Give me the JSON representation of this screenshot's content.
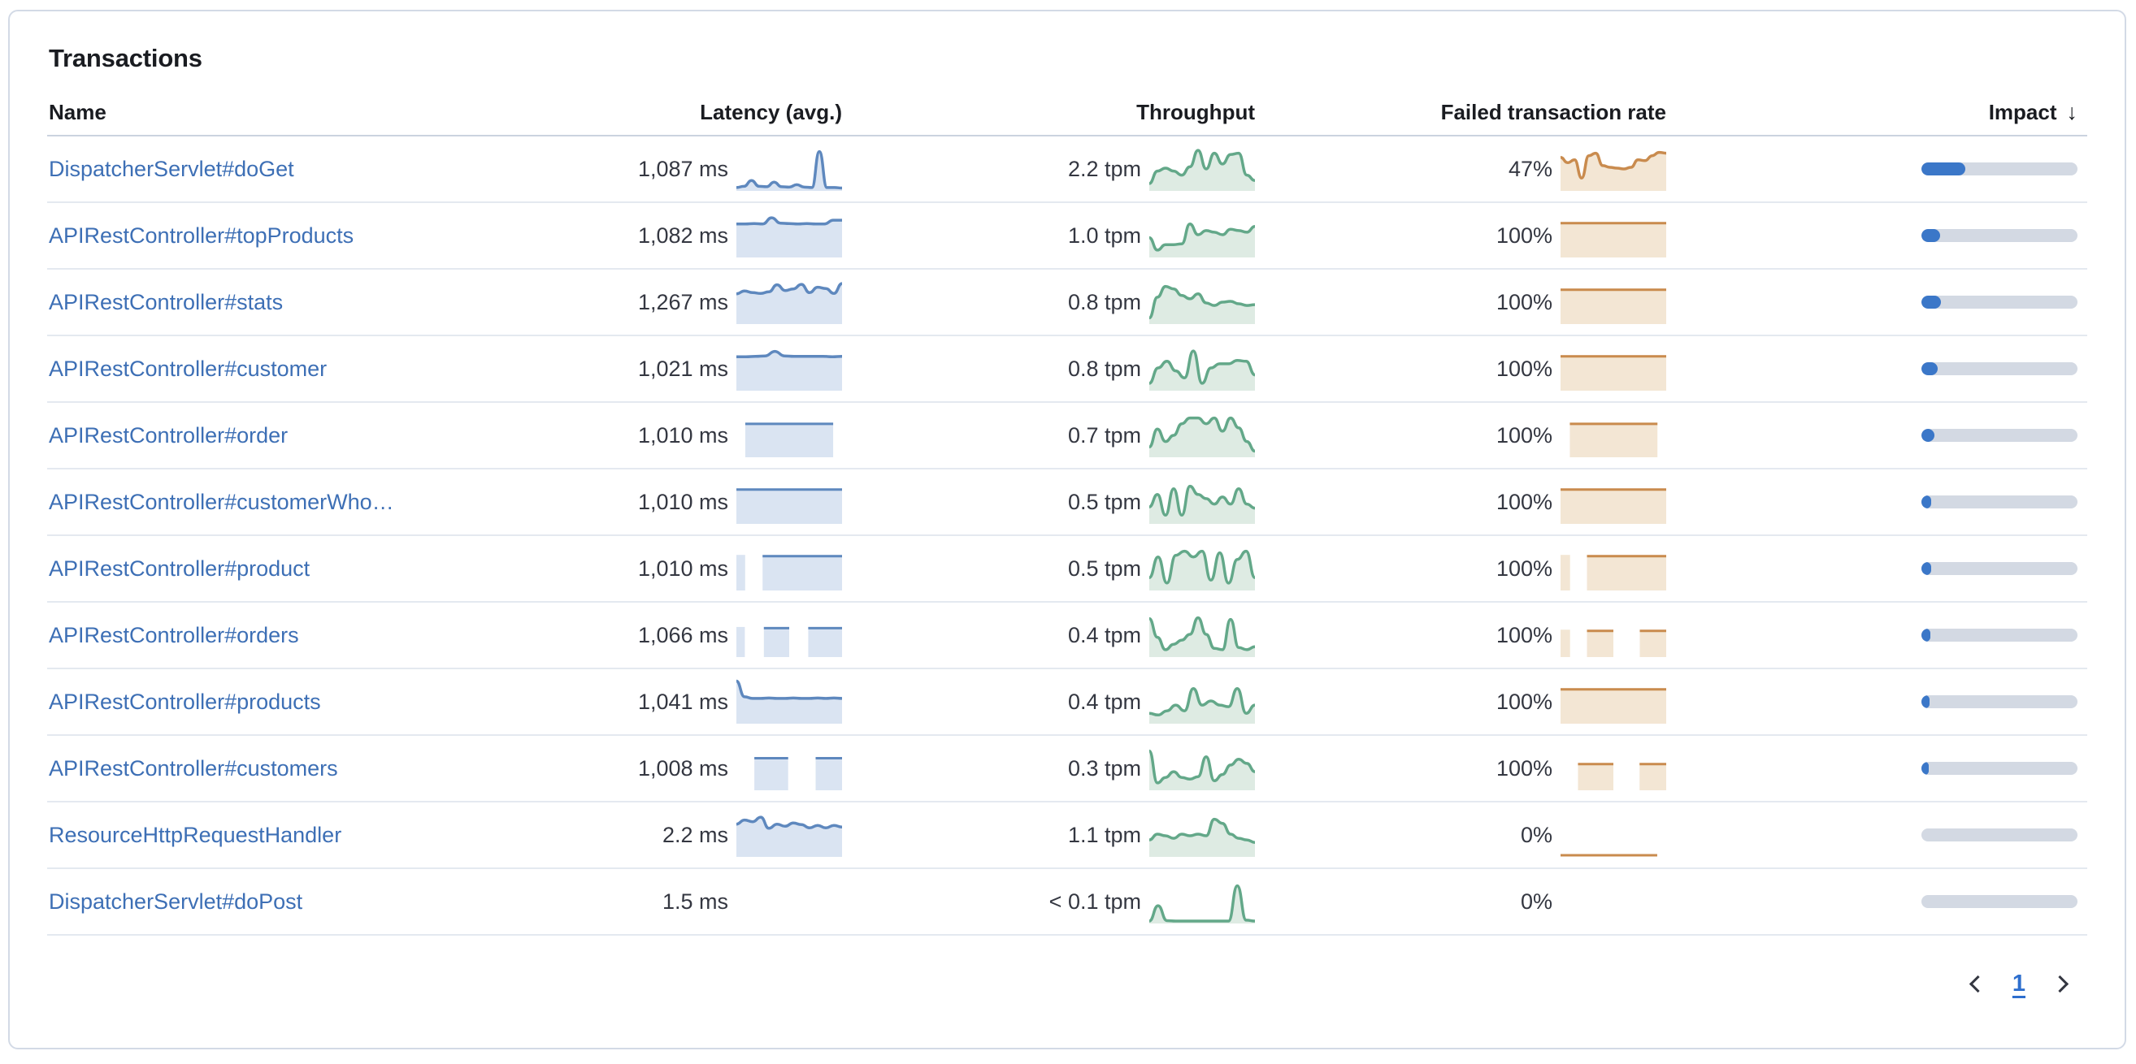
{
  "card": {
    "title": "Transactions"
  },
  "table": {
    "columns": [
      {
        "label": "Name",
        "align": "left"
      },
      {
        "label": "Latency (avg.)",
        "align": "right"
      },
      {
        "label": "Throughput",
        "align": "right"
      },
      {
        "label": "Failed transaction rate",
        "align": "right"
      },
      {
        "label": "Impact",
        "align": "right",
        "sorted": "desc"
      }
    ],
    "sort_icon": "↓",
    "rows": [
      {
        "name": "DispatcherServlet#doGet",
        "latency": "1,087 ms",
        "throughput": "2.2 tpm",
        "failed_rate": "47%",
        "impact_pct": 28,
        "latency_spark": {
          "type": "line",
          "points": [
            0.05,
            0.08,
            0.22,
            0.08,
            0.07,
            0.18,
            0.07,
            0.06,
            0.12,
            0.06,
            0.05,
            0.92,
            0.05,
            0.05,
            0.04
          ]
        },
        "throughput_spark": {
          "type": "line",
          "points": [
            0.15,
            0.45,
            0.52,
            0.45,
            0.35,
            0.55,
            0.95,
            0.5,
            0.88,
            0.62,
            0.85,
            0.88,
            0.35,
            0.22
          ]
        },
        "failed_spark": {
          "type": "line",
          "points": [
            0.78,
            0.65,
            0.72,
            0.28,
            0.82,
            0.88,
            0.58,
            0.54,
            0.52,
            0.5,
            0.54,
            0.72,
            0.7,
            0.82,
            0.9,
            0.88
          ]
        }
      },
      {
        "name": "APIRestController#topProducts",
        "latency": "1,082 ms",
        "throughput": "1.0 tpm",
        "failed_rate": "100%",
        "impact_pct": 12,
        "latency_spark": {
          "type": "line",
          "points": [
            0.78,
            0.78,
            0.79,
            0.78,
            0.93,
            0.8,
            0.79,
            0.78,
            0.79,
            0.78,
            0.78,
            0.87,
            0.87
          ]
        },
        "throughput_spark": {
          "type": "line",
          "points": [
            0.45,
            0.15,
            0.28,
            0.28,
            0.3,
            0.78,
            0.52,
            0.62,
            0.58,
            0.52,
            0.65,
            0.62,
            0.58,
            0.72
          ]
        },
        "failed_spark": {
          "type": "blocks",
          "level": 0.8,
          "segments": [
            [
              0,
              1
            ]
          ]
        }
      },
      {
        "name": "APIRestController#stats",
        "latency": "1,267 ms",
        "throughput": "0.8 tpm",
        "failed_rate": "100%",
        "impact_pct": 12.5,
        "latency_spark": {
          "type": "line",
          "points": [
            0.7,
            0.77,
            0.73,
            0.71,
            0.75,
            0.92,
            0.78,
            0.82,
            0.93,
            0.73,
            0.86,
            0.83,
            0.71,
            0.95
          ]
        },
        "throughput_spark": {
          "type": "line",
          "points": [
            0.12,
            0.62,
            0.88,
            0.82,
            0.66,
            0.58,
            0.7,
            0.48,
            0.42,
            0.5,
            0.52,
            0.46,
            0.42,
            0.44
          ]
        },
        "failed_spark": {
          "type": "blocks",
          "level": 0.8,
          "segments": [
            [
              0,
              1
            ]
          ]
        }
      },
      {
        "name": "APIRestController#customer",
        "latency": "1,021 ms",
        "throughput": "0.8 tpm",
        "failed_rate": "100%",
        "impact_pct": 10.5,
        "latency_spark": {
          "type": "line",
          "points": [
            0.79,
            0.79,
            0.8,
            0.81,
            0.92,
            0.81,
            0.8,
            0.8,
            0.8,
            0.8,
            0.79,
            0.8
          ]
        },
        "throughput_spark": {
          "type": "line",
          "points": [
            0.15,
            0.52,
            0.68,
            0.45,
            0.28,
            0.93,
            0.15,
            0.52,
            0.62,
            0.62,
            0.7,
            0.68,
            0.35
          ]
        },
        "failed_spark": {
          "type": "blocks",
          "level": 0.8,
          "segments": [
            [
              0,
              1
            ]
          ]
        }
      },
      {
        "name": "APIRestController#order",
        "latency": "1,010 ms",
        "throughput": "0.7 tpm",
        "failed_rate": "100%",
        "impact_pct": 8.5,
        "latency_spark": {
          "type": "blocks",
          "level": 0.78,
          "segments": [
            [
              0.084,
              0.916
            ]
          ]
        },
        "throughput_spark": {
          "type": "line",
          "points": [
            0.22,
            0.65,
            0.35,
            0.5,
            0.78,
            0.92,
            0.92,
            0.78,
            0.92,
            0.6,
            0.92,
            0.68,
            0.35,
            0.12
          ]
        },
        "failed_spark": {
          "type": "blocks",
          "level": 0.78,
          "segments": [
            [
              0.088,
              0.917
            ]
          ]
        }
      },
      {
        "name": "APIRestController#customerWho…",
        "latency": "1,010 ms",
        "throughput": "0.5 tpm",
        "failed_rate": "100%",
        "impact_pct": 6.5,
        "latency_spark": {
          "type": "blocks",
          "level": 0.8,
          "segments": [
            [
              0,
              1
            ]
          ]
        },
        "throughput_spark": {
          "type": "line",
          "points": [
            0.38,
            0.68,
            0.18,
            0.82,
            0.18,
            0.88,
            0.68,
            0.58,
            0.45,
            0.62,
            0.45,
            0.82,
            0.45,
            0.35
          ]
        },
        "failed_spark": {
          "type": "blocks",
          "level": 0.8,
          "segments": [
            [
              0,
              1
            ]
          ]
        }
      },
      {
        "name": "APIRestController#product",
        "latency": "1,010 ms",
        "throughput": "0.5 tpm",
        "failed_rate": "100%",
        "impact_pct": 6,
        "latency_spark": {
          "type": "blocks",
          "level": 0.8,
          "segments": [
            [
              0,
              0.083
            ],
            [
              0.248,
              1
            ]
          ]
        },
        "throughput_spark": {
          "type": "line",
          "points": [
            0.28,
            0.78,
            0.15,
            0.82,
            0.92,
            0.78,
            0.92,
            0.22,
            0.88,
            0.15,
            0.72,
            0.92,
            0.28
          ]
        },
        "failed_spark": {
          "type": "blocks",
          "level": 0.8,
          "segments": [
            [
              0,
              0.09
            ],
            [
              0.25,
              1
            ]
          ]
        }
      },
      {
        "name": "APIRestController#orders",
        "latency": "1,066 ms",
        "throughput": "0.4 tpm",
        "failed_rate": "100%",
        "impact_pct": 5.5,
        "latency_spark": {
          "type": "blocks",
          "level": 0.68,
          "segments": [
            [
              0,
              0.08
            ],
            [
              0.26,
              0.5
            ],
            [
              0.68,
              1
            ]
          ]
        },
        "throughput_spark": {
          "type": "line",
          "points": [
            0.9,
            0.45,
            0.15,
            0.28,
            0.38,
            0.52,
            0.92,
            0.52,
            0.18,
            0.15,
            0.88,
            0.2,
            0.15,
            0.22
          ]
        },
        "failed_spark": {
          "type": "blocks",
          "level": 0.62,
          "segments": [
            [
              0,
              0.09
            ],
            [
              0.25,
              0.5
            ],
            [
              0.75,
              1
            ]
          ]
        }
      },
      {
        "name": "APIRestController#products",
        "latency": "1,041 ms",
        "throughput": "0.4 tpm",
        "failed_rate": "100%",
        "impact_pct": 5,
        "latency_spark": {
          "type": "line",
          "points": [
            1.0,
            0.62,
            0.58,
            0.58,
            0.59,
            0.58,
            0.58,
            0.59,
            0.58,
            0.58,
            0.59,
            0.58,
            0.59,
            0.58
          ]
        },
        "throughput_spark": {
          "type": "line",
          "points": [
            0.22,
            0.18,
            0.28,
            0.42,
            0.28,
            0.82,
            0.42,
            0.52,
            0.42,
            0.38,
            0.82,
            0.22,
            0.42
          ]
        },
        "failed_spark": {
          "type": "blocks",
          "level": 0.8,
          "segments": [
            [
              0,
              1
            ]
          ]
        }
      },
      {
        "name": "APIRestController#customers",
        "latency": "1,008 ms",
        "throughput": "0.3 tpm",
        "failed_rate": "100%",
        "impact_pct": 4.5,
        "latency_spark": {
          "type": "blocks",
          "level": 0.75,
          "segments": [
            [
              0.17,
              0.49
            ],
            [
              0.75,
              1
            ]
          ]
        },
        "throughput_spark": {
          "type": "line",
          "points": [
            0.92,
            0.15,
            0.28,
            0.42,
            0.28,
            0.24,
            0.3,
            0.78,
            0.2,
            0.35,
            0.58,
            0.72,
            0.62,
            0.42
          ]
        },
        "failed_spark": {
          "type": "blocks",
          "level": 0.62,
          "segments": [
            [
              0.165,
              0.5
            ],
            [
              0.748,
              1
            ]
          ]
        }
      },
      {
        "name": "ResourceHttpRequestHandler",
        "latency": "2.2 ms",
        "throughput": "1.1 tpm",
        "failed_rate": "0%",
        "impact_pct": 0,
        "latency_spark": {
          "type": "line",
          "points": [
            0.76,
            0.86,
            0.82,
            0.93,
            0.66,
            0.76,
            0.71,
            0.79,
            0.75,
            0.67,
            0.73,
            0.67,
            0.73,
            0.69
          ]
        },
        "throughput_spark": {
          "type": "line",
          "points": [
            0.38,
            0.52,
            0.48,
            0.42,
            0.52,
            0.48,
            0.52,
            0.48,
            0.88,
            0.78,
            0.52,
            0.42,
            0.38,
            0.32
          ]
        },
        "failed_spark": {
          "type": "baseline",
          "from": 0,
          "to": 0.915
        }
      },
      {
        "name": "DispatcherServlet#doPost",
        "latency": "1.5 ms",
        "throughput": "< 0.1 tpm",
        "failed_rate": "0%",
        "impact_pct": 0,
        "latency_spark": {
          "type": "none"
        },
        "throughput_spark": {
          "type": "line",
          "points": [
            0.03,
            0.4,
            0.04,
            0.03,
            0.03,
            0.03,
            0.03,
            0.03,
            0.03,
            0.03,
            0.88,
            0.05,
            0.03
          ]
        },
        "failed_spark": {
          "type": "none"
        }
      }
    ]
  },
  "pagination": {
    "page": "1"
  },
  "colors": {
    "latency": {
      "line": "#5E88BE",
      "fill": "#DAE4F2"
    },
    "throughput": {
      "line": "#63A889",
      "fill": "#DEEBE3"
    },
    "failed": {
      "line": "#C98B4E",
      "fill": "#F3E6D4"
    },
    "impact_fill": "#3B77C8",
    "impact_track": "#D3D9E3",
    "link": "#3D6FB5"
  }
}
